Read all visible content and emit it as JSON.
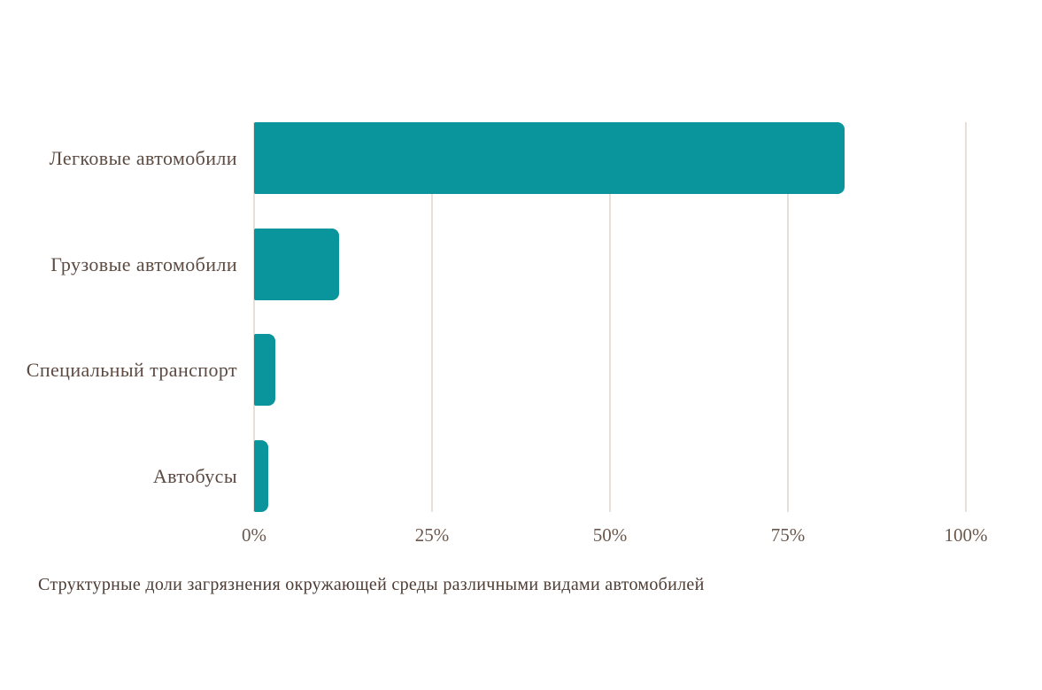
{
  "chart_data": {
    "type": "bar",
    "orientation": "horizontal",
    "categories": [
      "Легковые автомобили",
      "Грузовые автомобили",
      "Специальный транспорт",
      "Автобусы"
    ],
    "values": [
      83,
      12,
      3,
      2
    ],
    "unit": "%",
    "x_ticks": [
      "0%",
      "25%",
      "50%",
      "75%",
      "100%"
    ],
    "x_tick_values": [
      0,
      25,
      50,
      75,
      100
    ],
    "xlim": [
      0,
      100
    ],
    "caption": "Структурные доли загрязнения окружающей среды различными видами автомобилей",
    "grid": "vertical-gridlines",
    "legend": "none",
    "colors": {
      "bar": "#0a949c",
      "gridline": "#e7dfd8",
      "category_text": "#5c4b42",
      "tick_text": "#6a584c",
      "caption_text": "#4d3d34",
      "background": "#ffffff"
    }
  }
}
